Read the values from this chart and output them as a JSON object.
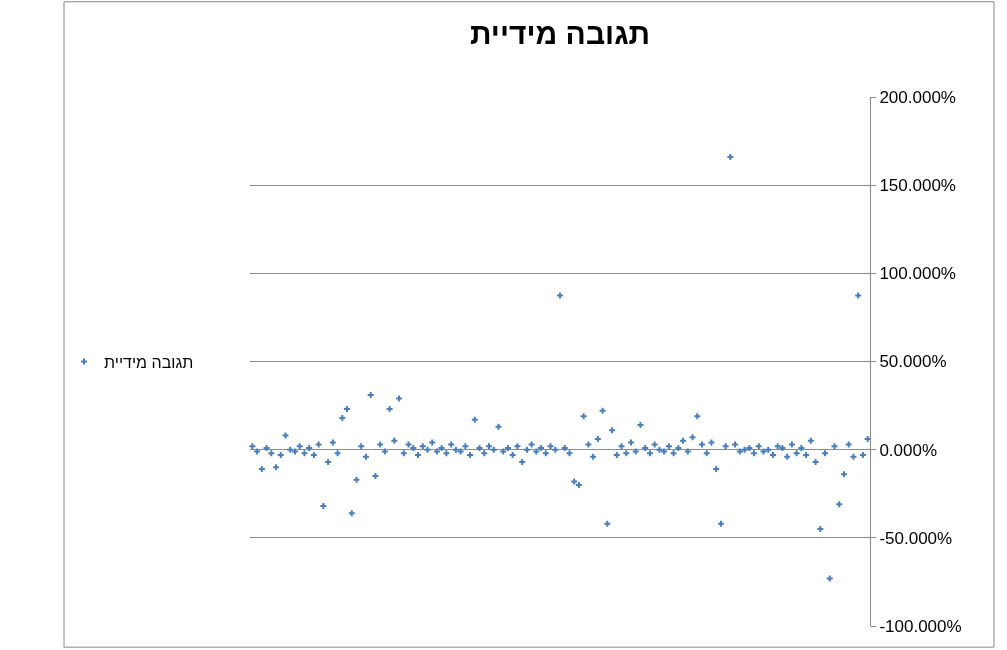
{
  "chart_data": {
    "type": "scatter",
    "title": "תגובה מידיית",
    "categories": [
      null,
      null,
      null,
      null,
      null,
      null,
      null,
      null,
      null,
      null,
      null,
      null,
      null,
      null,
      null,
      null,
      null,
      null,
      null,
      null,
      null,
      null,
      null,
      null,
      null,
      null,
      null,
      null,
      null,
      null,
      null,
      null,
      null,
      null,
      null,
      null,
      null,
      null,
      null,
      null,
      null,
      null,
      null,
      null,
      null,
      null,
      null,
      null,
      null,
      null,
      null,
      null,
      null,
      null,
      null,
      null,
      null,
      null,
      null,
      null,
      null,
      null,
      null,
      null,
      null,
      null,
      null,
      null,
      null,
      null,
      null,
      null,
      null,
      null,
      null,
      null,
      null,
      null,
      null,
      null,
      null,
      null,
      null,
      null,
      null,
      null,
      null,
      null,
      null,
      null,
      null,
      null,
      null,
      null,
      null,
      null,
      null,
      null,
      null,
      null,
      null,
      null,
      null,
      null,
      null,
      null,
      null,
      null,
      null,
      null,
      null,
      null,
      null,
      null,
      null,
      null,
      null,
      null,
      null,
      null,
      null,
      null,
      null,
      null,
      null,
      null,
      null,
      null,
      null,
      null,
      null
    ],
    "series": [
      {
        "name": "תגובה מידיית",
        "color": "#4a7ebb",
        "values": [
          2,
          -1,
          -11,
          1,
          -2,
          -10,
          -3,
          8,
          0,
          -1,
          2,
          -2,
          1,
          -3,
          3,
          -32,
          -7,
          4,
          -2,
          18,
          23,
          -36,
          -17,
          2,
          -4,
          31,
          -15,
          3,
          -1,
          23,
          5,
          29,
          -2,
          3,
          1,
          -3,
          2,
          0,
          4,
          -1,
          1,
          -2,
          3,
          0,
          -1,
          2,
          -3,
          17,
          1,
          -2,
          2,
          0,
          13,
          -1,
          1,
          -3,
          2,
          -7,
          0,
          3,
          -1,
          1,
          -2,
          2,
          0,
          87.5,
          1,
          -2,
          -18,
          -20,
          19,
          3,
          -4,
          6,
          22,
          -42,
          11,
          -3,
          2,
          -2,
          4,
          -1,
          14,
          1,
          -2,
          3,
          0,
          -1,
          2,
          -2,
          1,
          5,
          -1,
          7,
          19,
          3,
          -2,
          4,
          -11,
          -42,
          2,
          166,
          3,
          -1,
          0,
          1,
          -2,
          2,
          -1,
          0,
          -3,
          2,
          1,
          -4,
          3,
          -2,
          1,
          -3,
          5,
          -7,
          -45,
          -2,
          -73,
          2,
          -31,
          -14,
          3,
          -4,
          87.5,
          -3,
          6
        ]
      }
    ],
    "ylim": [
      -100,
      200
    ],
    "yticks": [
      {
        "value": -100,
        "label": "-100.000%"
      },
      {
        "value": -50,
        "label": "-50.000%"
      },
      {
        "value": 0,
        "label": "0.000%"
      },
      {
        "value": 50,
        "label": "50.000%"
      },
      {
        "value": 100,
        "label": "100.000%"
      },
      {
        "value": 150,
        "label": "150.000%"
      },
      {
        "value": 200,
        "label": "200.000%"
      }
    ],
    "grid": "y",
    "legend": "left",
    "marker": "cross",
    "tick_labels": "y"
  }
}
